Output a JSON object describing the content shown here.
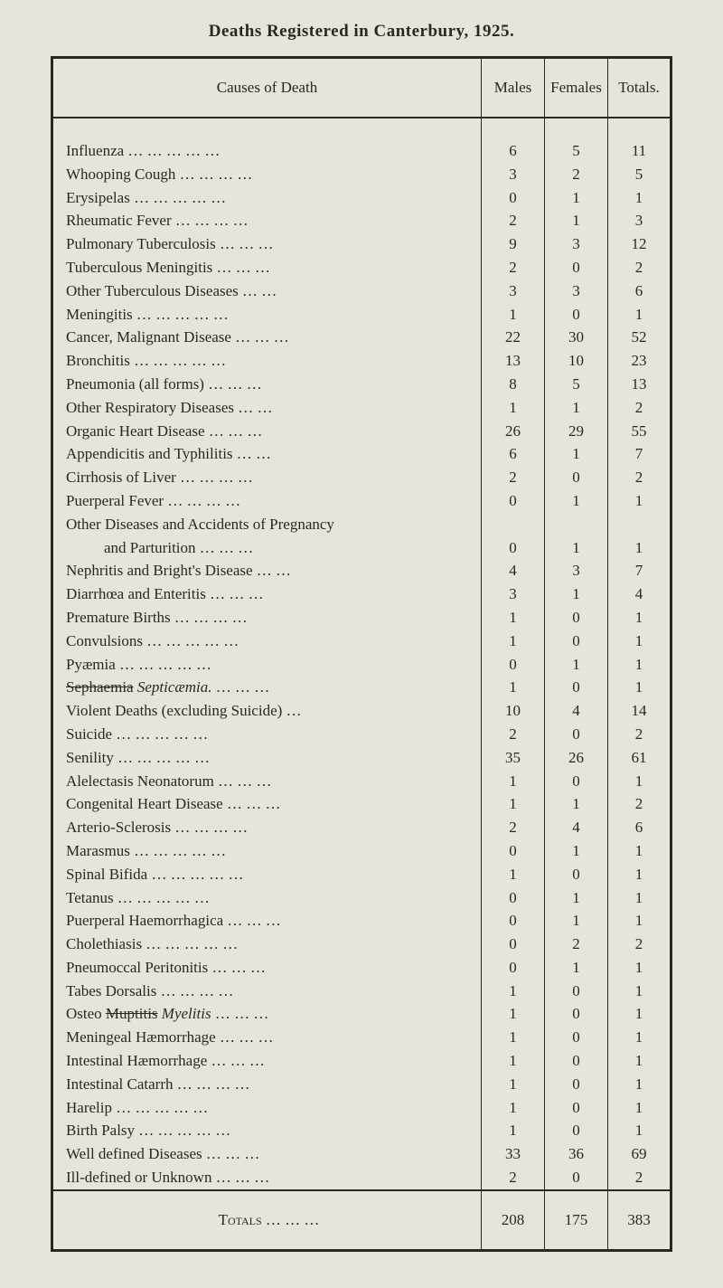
{
  "title": "Deaths Registered in Canterbury, 1925.",
  "columns": [
    "Causes of Death",
    "Males",
    "Females",
    "Totals."
  ],
  "rows": [
    {
      "label": "Influenza   …    …    …    …    …",
      "m": "6",
      "f": "5",
      "t": "11"
    },
    {
      "label": "Whooping Cough   …    …    …    …",
      "m": "3",
      "f": "2",
      "t": "5"
    },
    {
      "label": "Erysipelas   …    …    …    …    …",
      "m": "0",
      "f": "1",
      "t": "1"
    },
    {
      "label": "Rheumatic Fever   …    …    …    …",
      "m": "2",
      "f": "1",
      "t": "3"
    },
    {
      "label": "Pulmonary Tuberculosis   …    …    …",
      "m": "9",
      "f": "3",
      "t": "12"
    },
    {
      "label": "Tuberculous Meningitis   …    …    …",
      "m": "2",
      "f": "0",
      "t": "2"
    },
    {
      "label": "Other Tuberculous Diseases   …    …",
      "m": "3",
      "f": "3",
      "t": "6"
    },
    {
      "label": "Meningitis   …    …    …    …    …",
      "m": "1",
      "f": "0",
      "t": "1"
    },
    {
      "label": "Cancer, Malignant Disease …    …    …",
      "m": "22",
      "f": "30",
      "t": "52"
    },
    {
      "label": "Bronchitis   …    …    …    …    …",
      "m": "13",
      "f": "10",
      "t": "23"
    },
    {
      "label": "Pneumonia (all forms)   …    …    …",
      "m": "8",
      "f": "5",
      "t": "13"
    },
    {
      "label": "Other Respiratory Diseases   …    …",
      "m": "1",
      "f": "1",
      "t": "2"
    },
    {
      "label": "Organic Heart Disease   …    …    …",
      "m": "26",
      "f": "29",
      "t": "55"
    },
    {
      "label": "Appendicitis and Typhilitis   …    …",
      "m": "6",
      "f": "1",
      "t": "7"
    },
    {
      "label": "Cirrhosis of Liver   …    …    …    …",
      "m": "2",
      "f": "0",
      "t": "2"
    },
    {
      "label": "Puerperal Fever   …    …    …    …",
      "m": "0",
      "f": "1",
      "t": "1"
    },
    {
      "label": "Other Diseases and Accidents of Pregnancy",
      "m": "",
      "f": "",
      "t": ""
    },
    {
      "label": "and Parturition   …    …    …",
      "m": "0",
      "f": "1",
      "t": "1",
      "indent": true
    },
    {
      "label": "Nephritis and Bright's Disease   …    …",
      "m": "4",
      "f": "3",
      "t": "7"
    },
    {
      "label": "Diarrhœa and Enteritis   …    …    …",
      "m": "3",
      "f": "1",
      "t": "4"
    },
    {
      "label": "Premature Births   …    …    …    …",
      "m": "1",
      "f": "0",
      "t": "1"
    },
    {
      "label": "Convulsions …    …    …    …    …",
      "m": "1",
      "f": "0",
      "t": "1"
    },
    {
      "label": "Pyæmia   …    …    …    …    …",
      "m": "0",
      "f": "1",
      "t": "1"
    },
    {
      "label_html": "<span class='strike'>Sephaemia</span><span class='hand'> Septicæmia.</span>   …    …    …",
      "m": "1",
      "f": "0",
      "t": "1"
    },
    {
      "label": "Violent Deaths (excluding Suicide)   …",
      "m": "10",
      "f": "4",
      "t": "14"
    },
    {
      "label": "Suicide   …    …    …    …    …",
      "m": "2",
      "f": "0",
      "t": "2"
    },
    {
      "label": "Senility   …    …    …    …    …",
      "m": "35",
      "f": "26",
      "t": "61"
    },
    {
      "label": "Alelectasis Neonatorum   …    …    …",
      "m": "1",
      "f": "0",
      "t": "1"
    },
    {
      "label": "Congenital Heart Disease   …    …    …",
      "m": "1",
      "f": "1",
      "t": "2"
    },
    {
      "label": "Arterio-Sclerosis   …    …    …    …",
      "m": "2",
      "f": "4",
      "t": "6"
    },
    {
      "label": "Marasmus   …    …    …    …    …",
      "m": "0",
      "f": "1",
      "t": "1"
    },
    {
      "label": "Spinal Bifida …    …    …    …    …",
      "m": "1",
      "f": "0",
      "t": "1"
    },
    {
      "label": "Tetanus   …    …    …    …    …",
      "m": "0",
      "f": "1",
      "t": "1"
    },
    {
      "label": "Puerperal Haemorrhagica …    …    …",
      "m": "0",
      "f": "1",
      "t": "1"
    },
    {
      "label": "Cholethiasis …    …    …    …    …",
      "m": "0",
      "f": "2",
      "t": "2"
    },
    {
      "label": "Pneumoccal Peritonitis   …    …    …",
      "m": "0",
      "f": "1",
      "t": "1"
    },
    {
      "label": "Tabes Dorsalis   …    …    …    …",
      "m": "1",
      "f": "0",
      "t": "1"
    },
    {
      "label_html": "Osteo <span class='strike'>Muptitis</span> <span class='hand'>Myelitis</span>   …    …    …",
      "m": "1",
      "f": "0",
      "t": "1"
    },
    {
      "label": "Meningeal Hæmorrhage   …    …    …",
      "m": "1",
      "f": "0",
      "t": "1"
    },
    {
      "label": "Intestinal Hæmorrhage   …    …    …",
      "m": "1",
      "f": "0",
      "t": "1"
    },
    {
      "label": "Intestinal Catarrh   …    …    …    …",
      "m": "1",
      "f": "0",
      "t": "1"
    },
    {
      "label": "Harelip   …    …    …    …    …",
      "m": "1",
      "f": "0",
      "t": "1"
    },
    {
      "label": "Birth Palsy   …    …    …    …    …",
      "m": "1",
      "f": "0",
      "t": "1"
    },
    {
      "label": "Well defined Diseases   …    …    …",
      "m": "33",
      "f": "36",
      "t": "69"
    },
    {
      "label": "Ill-defined or Unknown   …    …    …",
      "m": "2",
      "f": "0",
      "t": "2"
    }
  ],
  "totals": {
    "label": "Totals   …    …    …",
    "m": "208",
    "f": "175",
    "t": "383"
  },
  "colors": {
    "bg": "#e8e4d8",
    "text": "#2a2822",
    "border": "#2a2822"
  }
}
